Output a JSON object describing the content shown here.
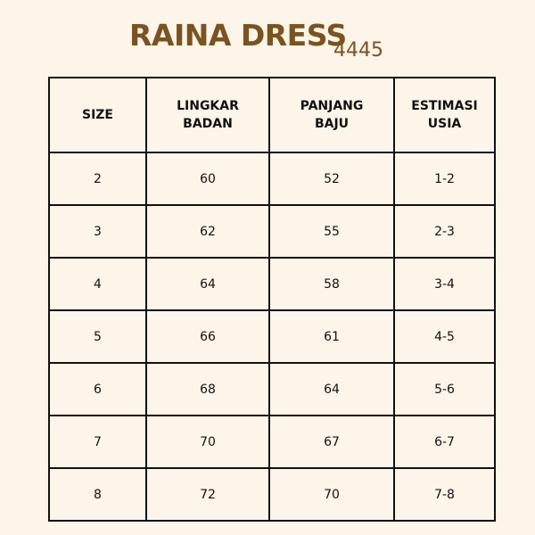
{
  "title": "RAINA DRESS",
  "code": "4445",
  "colors": {
    "title": "#7b531f",
    "background": "#fdf5ea",
    "border": "#111111"
  },
  "headers": [
    [
      "SIZE",
      ""
    ],
    [
      "LINGKAR",
      "BADAN"
    ],
    [
      "PANJANG",
      "BAJU"
    ],
    [
      "ESTIMASI",
      "USIA"
    ]
  ],
  "rows": [
    [
      "2",
      "60",
      "52",
      "1-2"
    ],
    [
      "3",
      "62",
      "55",
      "2-3"
    ],
    [
      "4",
      "64",
      "58",
      "3-4"
    ],
    [
      "5",
      "66",
      "61",
      "4-5"
    ],
    [
      "6",
      "68",
      "64",
      "5-6"
    ],
    [
      "7",
      "70",
      "67",
      "6-7"
    ],
    [
      "8",
      "72",
      "70",
      "7-8"
    ]
  ]
}
